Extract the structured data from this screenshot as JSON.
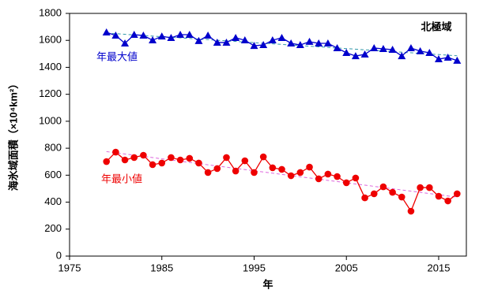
{
  "chart_data": {
    "type": "line",
    "title": "北極域",
    "x_label": "年",
    "y_label": "海氷域面積（×10⁴km²）",
    "x": [
      1979,
      1980,
      1981,
      1982,
      1983,
      1984,
      1985,
      1986,
      1987,
      1988,
      1989,
      1990,
      1991,
      1992,
      1993,
      1994,
      1995,
      1996,
      1997,
      1998,
      1999,
      2000,
      2001,
      2002,
      2003,
      2004,
      2005,
      2006,
      2007,
      2008,
      2009,
      2010,
      2011,
      2012,
      2013,
      2014,
      2015,
      2016,
      2017
    ],
    "series": [
      {
        "name": "年最大値",
        "color": "#0000cc",
        "marker": "triangle",
        "values": [
          1660,
          1636,
          1578,
          1642,
          1636,
          1601,
          1630,
          1619,
          1642,
          1642,
          1596,
          1636,
          1584,
          1584,
          1619,
          1601,
          1560,
          1566,
          1601,
          1619,
          1578,
          1566,
          1590,
          1578,
          1578,
          1543,
          1508,
          1484,
          1496,
          1543,
          1537,
          1531,
          1484,
          1543,
          1520,
          1508,
          1461,
          1473,
          1450
        ]
      },
      {
        "name": "年最小値",
        "color": "#ee0000",
        "marker": "circle",
        "values": [
          701,
          771,
          713,
          731,
          748,
          678,
          690,
          731,
          713,
          725,
          690,
          620,
          649,
          731,
          631,
          707,
          620,
          736,
          655,
          643,
          596,
          620,
          660,
          573,
          608,
          590,
          544,
          579,
          432,
          462,
          514,
          473,
          438,
          333,
          508,
          508,
          444,
          409,
          462
        ]
      }
    ],
    "xlim": [
      1975,
      2018
    ],
    "xticks": [
      1975,
      1985,
      1995,
      2005,
      2015
    ],
    "ylim": [
      0,
      1800
    ],
    "yticks": [
      0,
      200,
      400,
      600,
      800,
      1000,
      1200,
      1400,
      1600,
      1800
    ],
    "grid": false
  }
}
